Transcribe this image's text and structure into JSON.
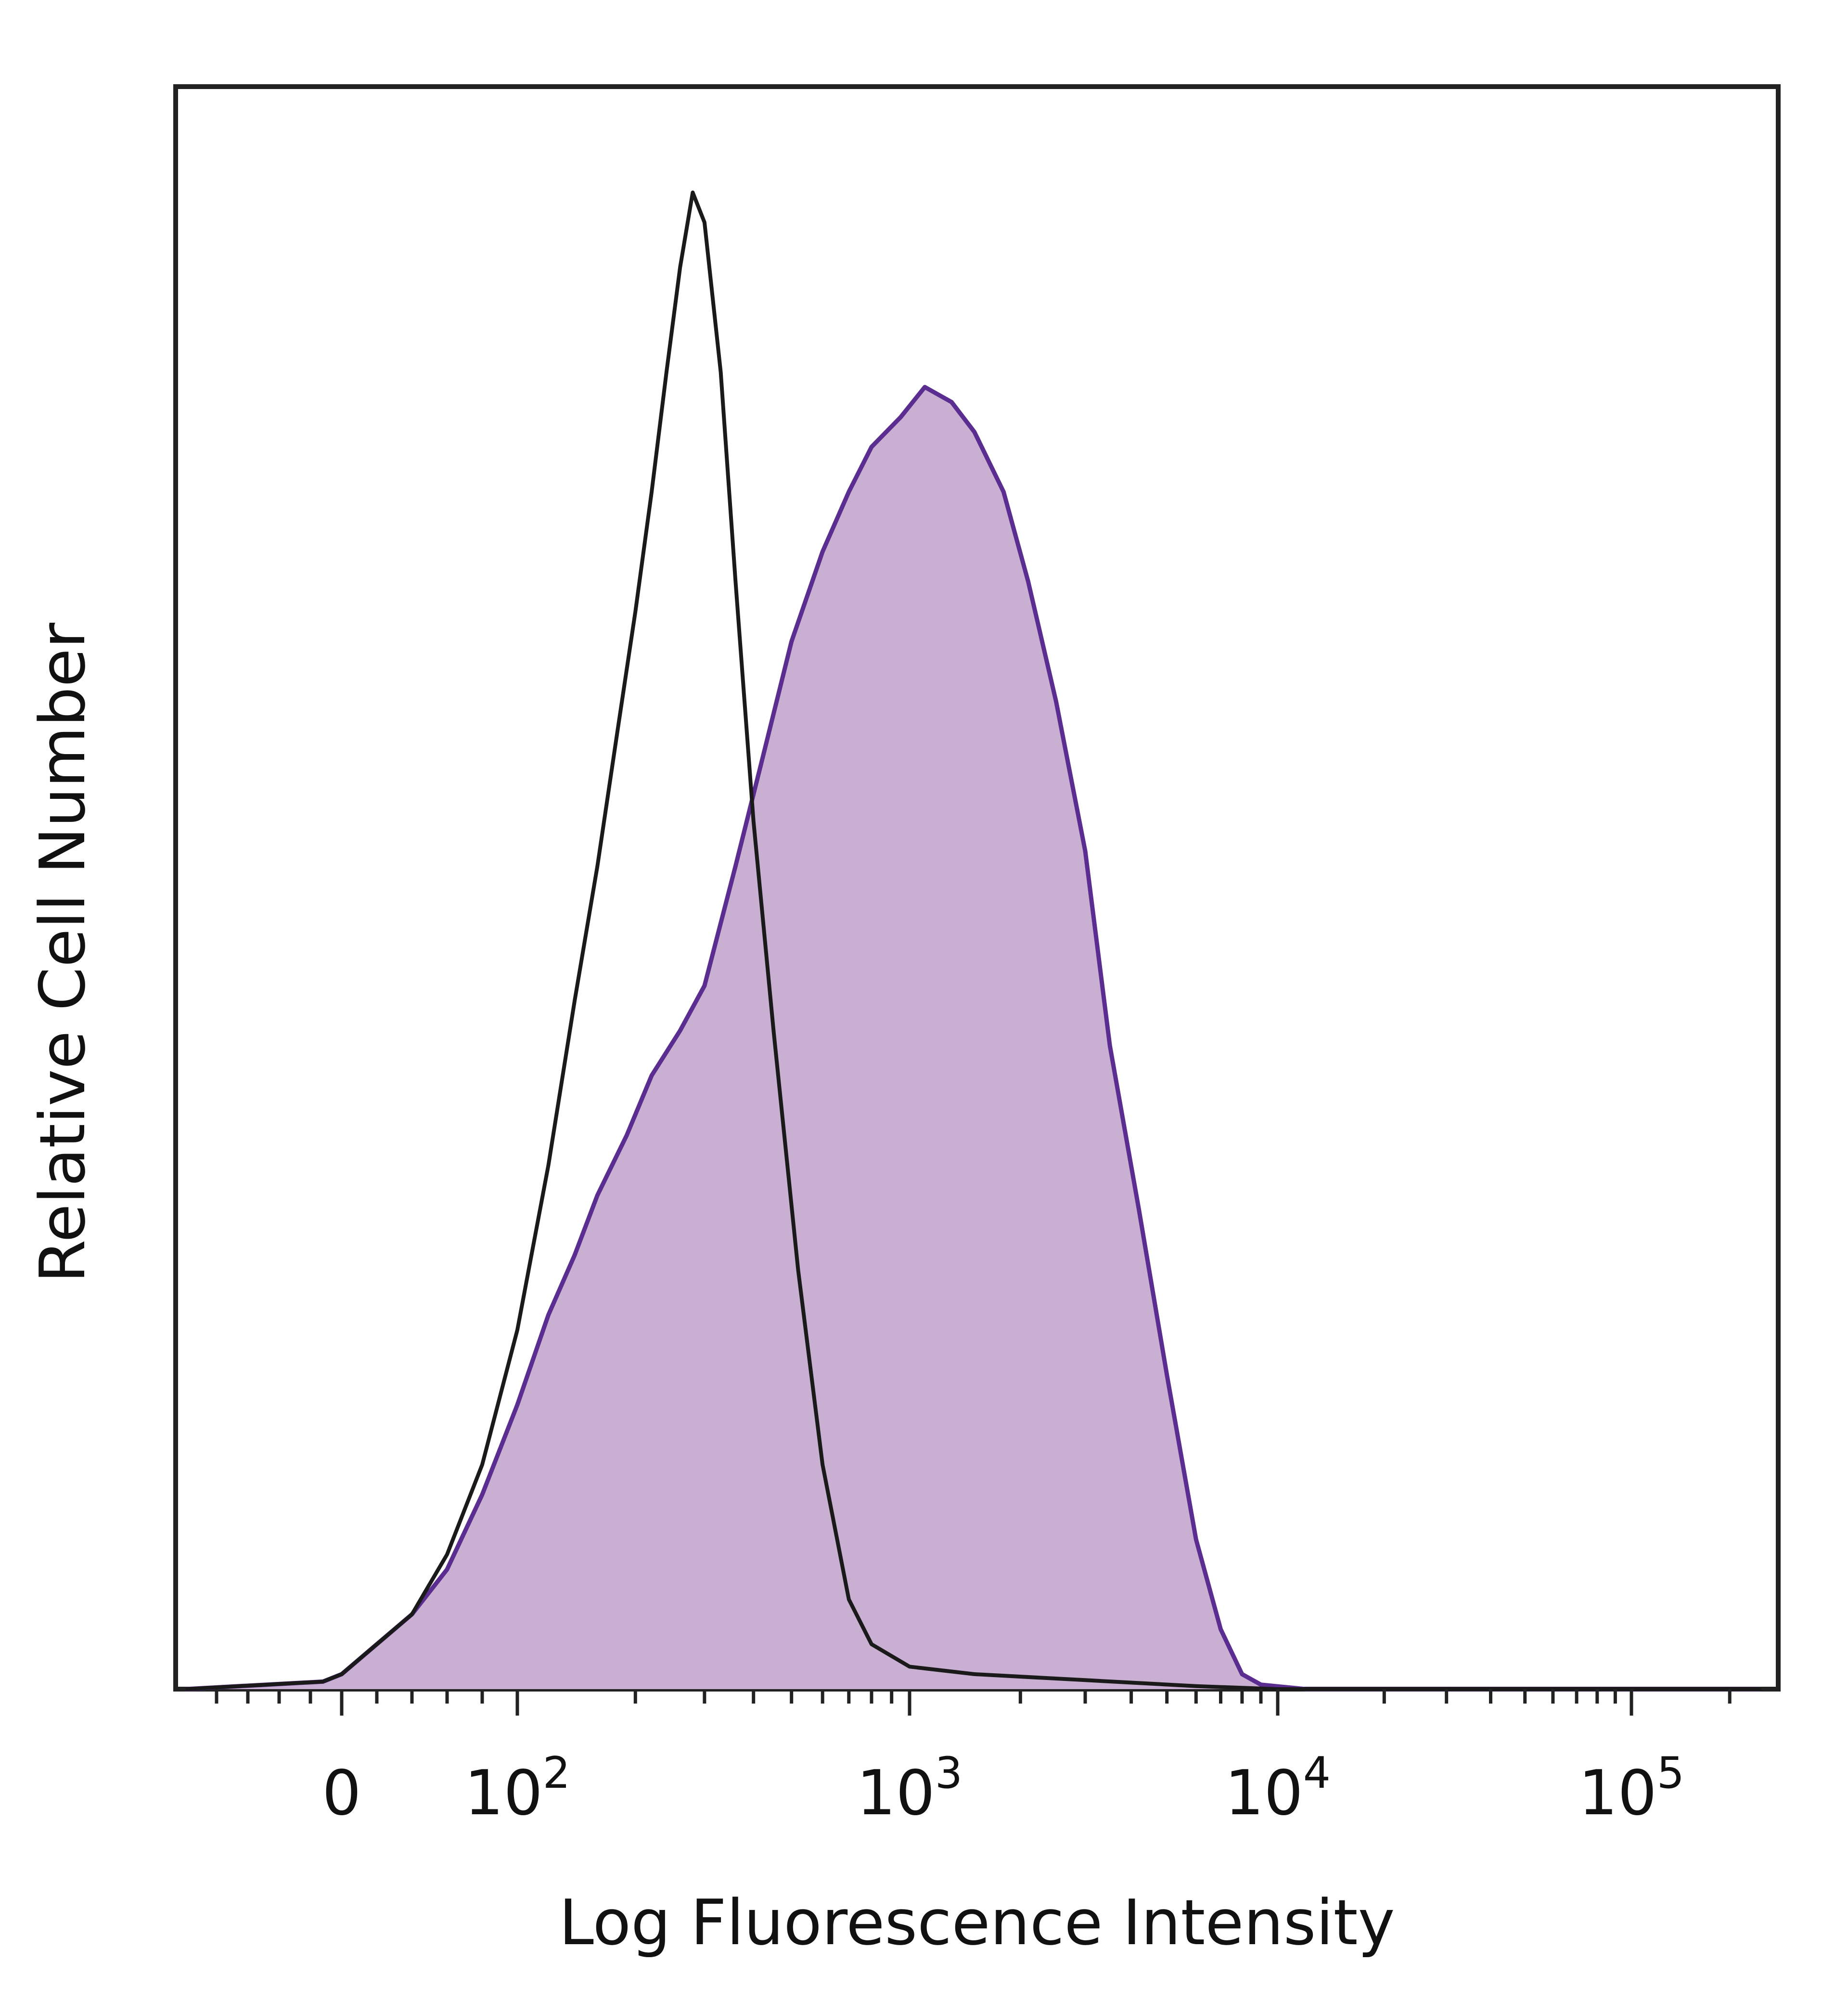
{
  "chart_data": {
    "type": "histogram",
    "xlabel": "Log Fluorescence Intensity",
    "ylabel": "Relative Cell Number",
    "x_scale": "biexponential",
    "x_ticks": [
      {
        "value": 0,
        "label": "0",
        "exp": ""
      },
      {
        "value": 100,
        "label": "10",
        "exp": "2"
      },
      {
        "value": 1000,
        "label": "10",
        "exp": "3"
      },
      {
        "value": 10000,
        "label": "10",
        "exp": "4"
      },
      {
        "value": 100000,
        "label": "10",
        "exp": "5"
      }
    ],
    "xlim": [
      -250,
      250000
    ],
    "ylim": [
      0,
      1
    ],
    "grid": false,
    "legend": "none",
    "series": [
      {
        "style": "filled",
        "fill": "#c9afd2",
        "stroke": "#5b2d90",
        "points": [
          [
            -250,
            0
          ],
          [
            -120,
            0.003
          ],
          [
            -30,
            0.005
          ],
          [
            0,
            0.01
          ],
          [
            20,
            0.03
          ],
          [
            40,
            0.05
          ],
          [
            60,
            0.08
          ],
          [
            80,
            0.13
          ],
          [
            100,
            0.19
          ],
          [
            120,
            0.25
          ],
          [
            140,
            0.29
          ],
          [
            160,
            0.33
          ],
          [
            190,
            0.37
          ],
          [
            220,
            0.41
          ],
          [
            260,
            0.44
          ],
          [
            300,
            0.47
          ],
          [
            360,
            0.55
          ],
          [
            420,
            0.62
          ],
          [
            500,
            0.7
          ],
          [
            600,
            0.76
          ],
          [
            700,
            0.8
          ],
          [
            800,
            0.83
          ],
          [
            950,
            0.85
          ],
          [
            1100,
            0.87
          ],
          [
            1300,
            0.86
          ],
          [
            1500,
            0.84
          ],
          [
            1800,
            0.8
          ],
          [
            2100,
            0.74
          ],
          [
            2500,
            0.66
          ],
          [
            3000,
            0.56
          ],
          [
            3500,
            0.43
          ],
          [
            4200,
            0.32
          ],
          [
            5000,
            0.21
          ],
          [
            6000,
            0.1
          ],
          [
            7000,
            0.04
          ],
          [
            8000,
            0.01
          ],
          [
            9000,
            0.003
          ],
          [
            12000,
            0
          ],
          [
            250000,
            0
          ]
        ]
      },
      {
        "style": "outline",
        "stroke": "#1a1a1a",
        "points": [
          [
            -250,
            0
          ],
          [
            -120,
            0.003
          ],
          [
            -30,
            0.005
          ],
          [
            0,
            0.01
          ],
          [
            20,
            0.03
          ],
          [
            40,
            0.05
          ],
          [
            60,
            0.09
          ],
          [
            80,
            0.15
          ],
          [
            100,
            0.24
          ],
          [
            120,
            0.35
          ],
          [
            140,
            0.46
          ],
          [
            160,
            0.55
          ],
          [
            180,
            0.64
          ],
          [
            200,
            0.72
          ],
          [
            220,
            0.8
          ],
          [
            240,
            0.88
          ],
          [
            260,
            0.95
          ],
          [
            280,
            1.0
          ],
          [
            300,
            0.98
          ],
          [
            330,
            0.88
          ],
          [
            360,
            0.74
          ],
          [
            400,
            0.58
          ],
          [
            450,
            0.44
          ],
          [
            520,
            0.28
          ],
          [
            600,
            0.15
          ],
          [
            700,
            0.06
          ],
          [
            800,
            0.03
          ],
          [
            1000,
            0.015
          ],
          [
            1500,
            0.01
          ],
          [
            3000,
            0.006
          ],
          [
            6000,
            0.002
          ],
          [
            10000,
            0
          ],
          [
            250000,
            0
          ]
        ]
      }
    ]
  }
}
